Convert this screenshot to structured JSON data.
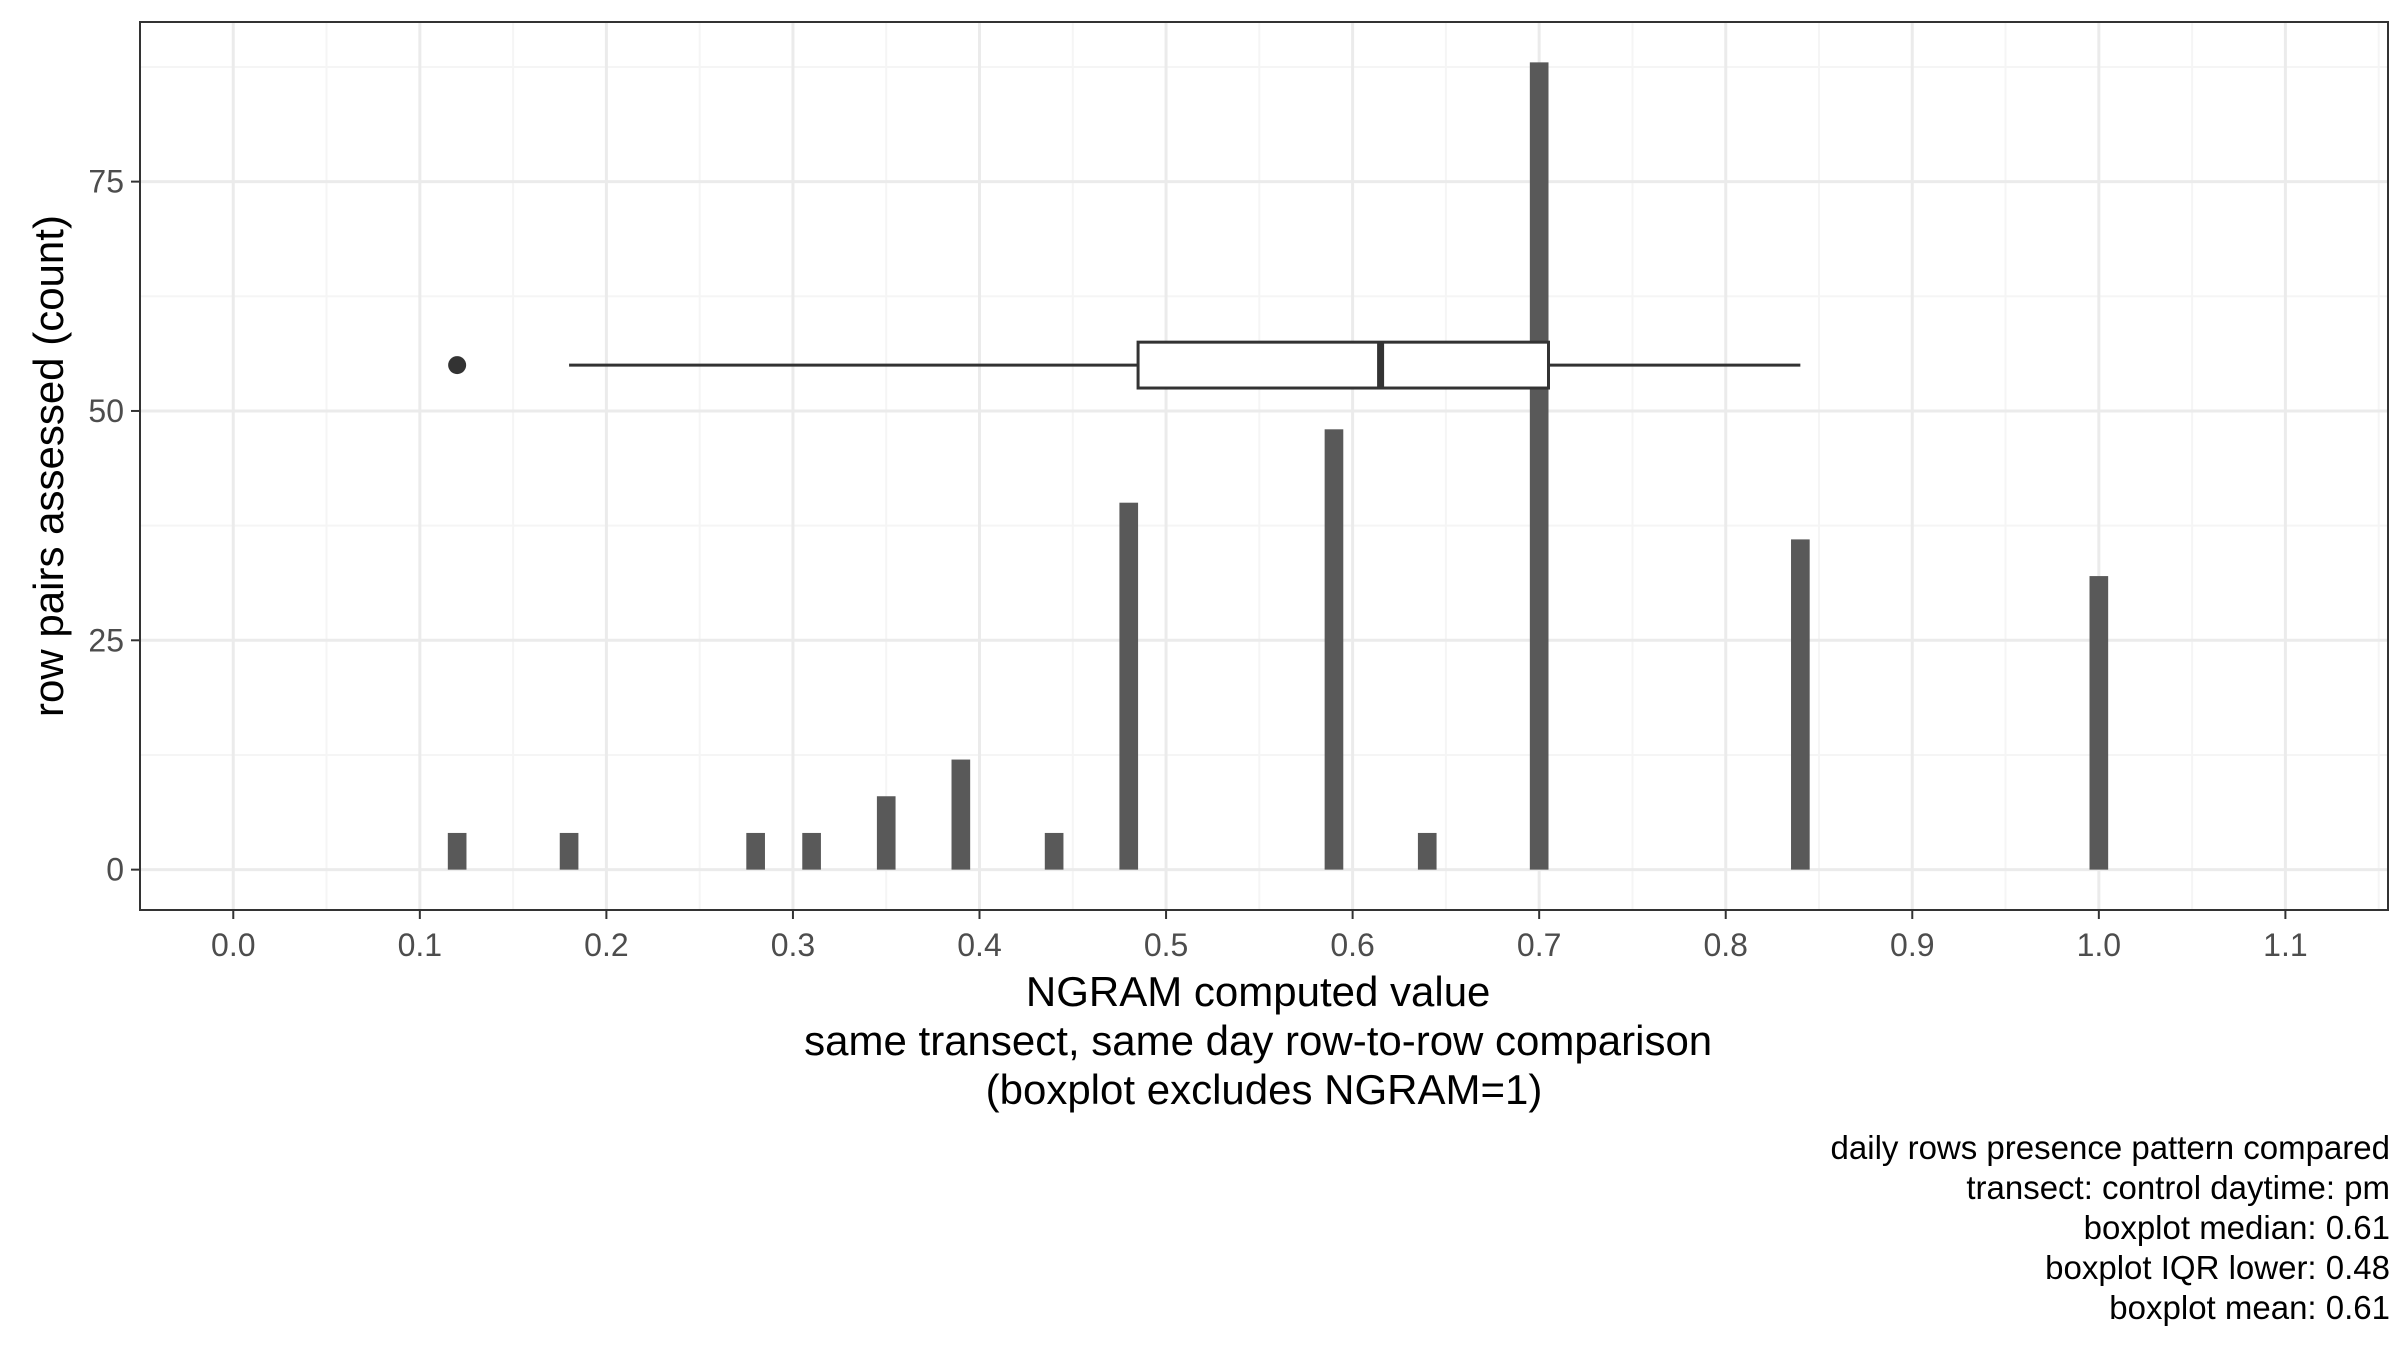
{
  "chart_data": {
    "type": "bar",
    "xlabel_lines": [
      "NGRAM computed value",
      "same transect, same day row-to-row comparison",
      "(boxplot excludes NGRAM=1)"
    ],
    "ylabel": "row pairs assessed (count)",
    "xlim": [
      -0.05,
      1.155
    ],
    "ylim": [
      -4.4,
      92.4
    ],
    "xticks": [
      0.0,
      0.1,
      0.2,
      0.3,
      0.4,
      0.5,
      0.6,
      0.7,
      0.8,
      0.9,
      1.0,
      1.1
    ],
    "xtick_labels": [
      "0.0",
      "0.1",
      "0.2",
      "0.3",
      "0.4",
      "0.5",
      "0.6",
      "0.7",
      "0.8",
      "0.9",
      "1.0",
      "1.1"
    ],
    "yticks": [
      0,
      25,
      50,
      75
    ],
    "ytick_labels": [
      "0",
      "25",
      "50",
      "75"
    ],
    "grid": true,
    "bar_width": 0.01,
    "bars": [
      {
        "x": 0.12,
        "count": 4
      },
      {
        "x": 0.18,
        "count": 4
      },
      {
        "x": 0.28,
        "count": 4
      },
      {
        "x": 0.31,
        "count": 4
      },
      {
        "x": 0.35,
        "count": 8
      },
      {
        "x": 0.39,
        "count": 12
      },
      {
        "x": 0.44,
        "count": 4
      },
      {
        "x": 0.48,
        "count": 40
      },
      {
        "x": 0.59,
        "count": 48
      },
      {
        "x": 0.64,
        "count": 4
      },
      {
        "x": 0.7,
        "count": 88
      },
      {
        "x": 0.84,
        "count": 36
      },
      {
        "x": 1.0,
        "count": 32
      }
    ],
    "boxplot": {
      "y": 55,
      "half_height": 2.5,
      "whisker_low": 0.18,
      "q1": 0.485,
      "median": 0.615,
      "q3": 0.705,
      "whisker_high": 0.84,
      "outliers": [
        0.12
      ]
    },
    "colors": {
      "bar": "#595959",
      "box_line": "#333333",
      "grid_major": "#ebebeb",
      "grid_minor": "#f5f5f5",
      "panel_border": "#333333"
    }
  },
  "caption_lines": [
    "daily rows presence pattern compared",
    "transect: control daytime: pm",
    "boxplot median: 0.61",
    "boxplot IQR lower: 0.48",
    "boxplot mean: 0.61"
  ]
}
